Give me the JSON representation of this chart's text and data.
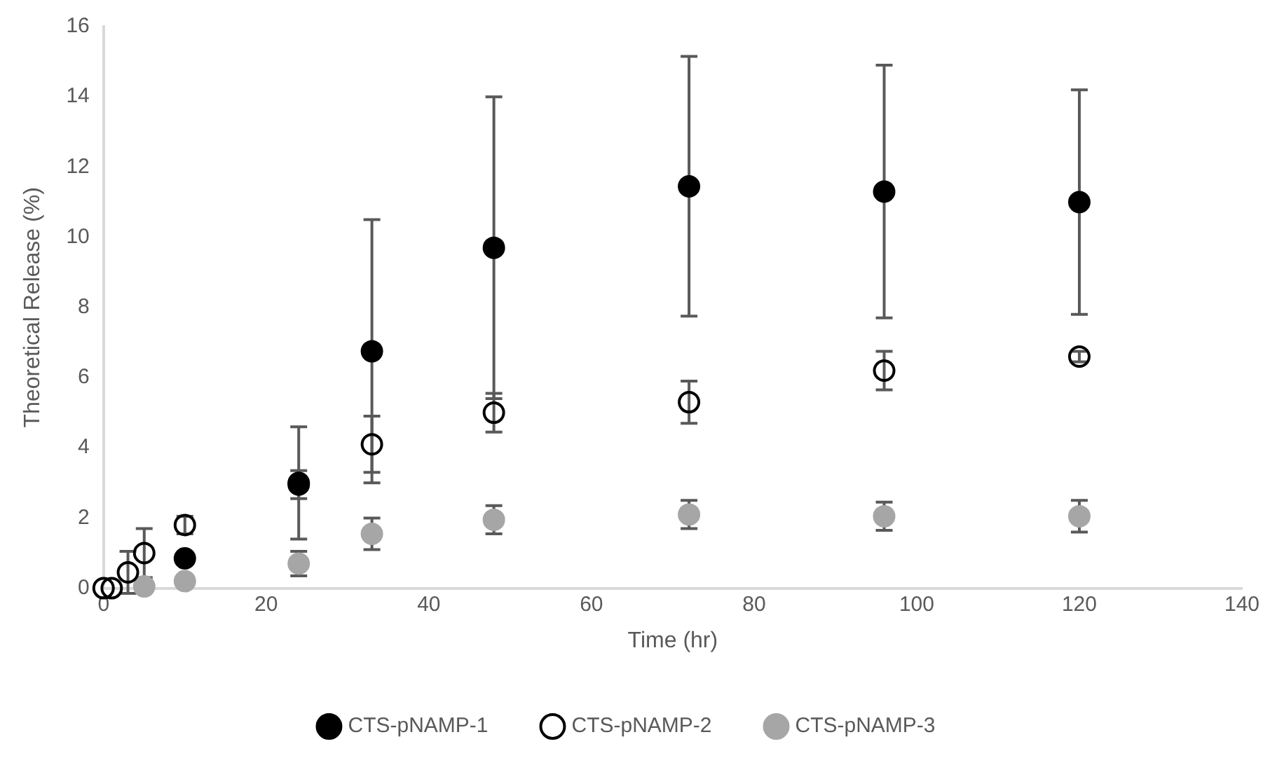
{
  "chart_data": {
    "type": "scatter",
    "xlabel": "Time (hr)",
    "ylabel": "Theoretical Release (%)",
    "xlim": [
      0,
      140
    ],
    "xticks": [
      0,
      20,
      40,
      60,
      80,
      100,
      120,
      140
    ],
    "ylim": [
      0,
      16
    ],
    "yticks": [
      0,
      2,
      4,
      6,
      8,
      10,
      12,
      14,
      16
    ],
    "grid": false,
    "legend": "bottom",
    "marker": "circle",
    "series": [
      {
        "name": "CTS-pNAMP-1",
        "color": "#000000",
        "x": [
          10,
          24,
          33,
          48,
          72,
          96,
          120
        ],
        "values": [
          0.85,
          3.0,
          6.75,
          9.7,
          11.45,
          11.3,
          11.0
        ],
        "errors": [
          null,
          1.6,
          3.75,
          4.3,
          3.7,
          3.6,
          3.2
        ]
      },
      {
        "name": "CTS-pNAMP-2",
        "color": "#000000",
        "marker": "circle-open",
        "x": [
          0,
          1,
          3,
          5,
          10,
          24,
          33,
          48,
          72,
          96,
          120
        ],
        "values": [
          0,
          0,
          0.45,
          1.0,
          1.8,
          2.95,
          4.1,
          5.0,
          5.3,
          6.2,
          6.6
        ],
        "errors": [
          null,
          null,
          0.6,
          0.7,
          0.25,
          0.4,
          0.8,
          0.55,
          0.6,
          0.55,
          0.15
        ]
      },
      {
        "name": "CTS-pNAMP-3",
        "color": "#a6a6a6",
        "x": [
          5,
          10,
          24,
          33,
          48,
          72,
          96,
          120
        ],
        "values": [
          0.05,
          0.2,
          0.7,
          1.55,
          1.95,
          2.1,
          2.05,
          2.05
        ],
        "errors": [
          null,
          null,
          0.35,
          0.45,
          0.4,
          0.4,
          0.4,
          0.45
        ]
      }
    ]
  }
}
